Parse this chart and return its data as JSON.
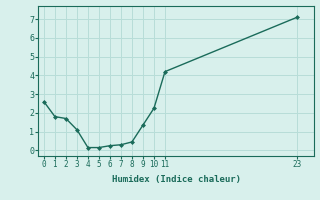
{
  "x": [
    0,
    1,
    2,
    3,
    4,
    5,
    6,
    7,
    8,
    9,
    10,
    11,
    23
  ],
  "y": [
    2.6,
    1.8,
    1.7,
    1.1,
    0.15,
    0.15,
    0.25,
    0.3,
    0.45,
    1.35,
    2.25,
    4.2,
    7.1
  ],
  "xlabel": "Humidex (Indice chaleur)",
  "xticks": [
    0,
    1,
    2,
    3,
    4,
    5,
    6,
    7,
    8,
    9,
    10,
    11,
    23
  ],
  "yticks": [
    0,
    1,
    2,
    3,
    4,
    5,
    6,
    7
  ],
  "ylim": [
    -0.3,
    7.7
  ],
  "xlim": [
    -0.5,
    24.5
  ],
  "line_color": "#1a6b5a",
  "bg_color": "#d8f0ec",
  "grid_color": "#b8ddd8",
  "tick_label_color": "#1a6b5a",
  "xlabel_color": "#1a6b5a"
}
